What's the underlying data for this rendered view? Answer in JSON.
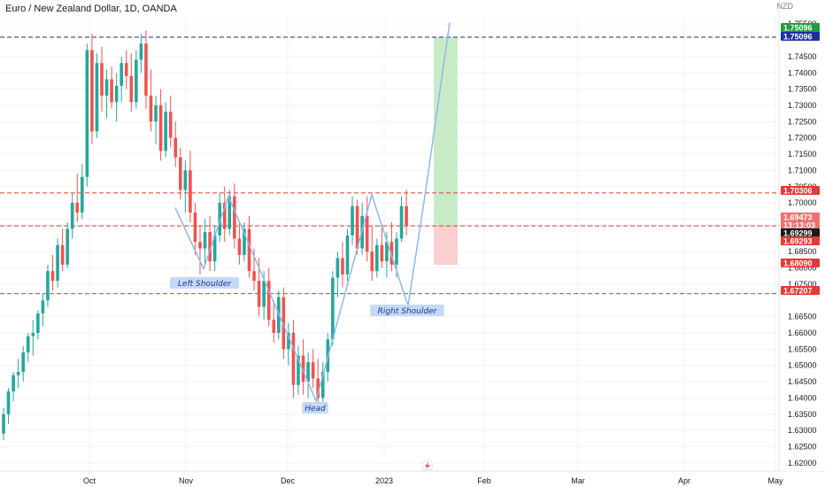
{
  "header": {
    "title": "Euro / New Zealand Dollar, 1D, OANDA",
    "currency": "NZD"
  },
  "colors": {
    "up": "#26a69a",
    "down": "#ef5350",
    "pattern_line": "#90b8e8",
    "annotation_bg": "#c5d9f7",
    "target_zone": "#c8ecc7",
    "stop_zone": "#fbd0d0",
    "level_line_red": "#e53935",
    "level_line_navy": "#2a2a7a"
  },
  "price_axis": {
    "labels": [
      "1.75500",
      "1.74500",
      "1.74000",
      "1.73500",
      "1.73000",
      "1.72500",
      "1.72000",
      "1.71500",
      "1.71000",
      "1.70500",
      "1.70000",
      "1.69500",
      "1.68500",
      "1.68000",
      "1.67500",
      "1.66500",
      "1.66000",
      "1.65500",
      "1.65000",
      "1.64500",
      "1.64000",
      "1.63500",
      "1.63000",
      "1.62500",
      "1.62000"
    ]
  },
  "price_tags": [
    {
      "text": "1.75096",
      "color": "#1e9e3a"
    },
    {
      "text": "1.75096",
      "color": "#1c2fa0"
    },
    {
      "text": "1.70306",
      "color": "#e53935"
    },
    {
      "text": "1.69473",
      "color": "#ef7070"
    },
    {
      "text": "13:13:03",
      "color": "#ef7070"
    },
    {
      "text": "1.69299",
      "color": "#1a1a1a"
    },
    {
      "text": "1.69293",
      "color": "#e53935"
    },
    {
      "text": "1.68090",
      "color": "#e53935"
    },
    {
      "text": "1.67207",
      "color": "#e53935"
    }
  ],
  "time_axis": {
    "labels": [
      "Oct",
      "Nov",
      "Dec",
      "2023",
      "Feb",
      "Mar",
      "Apr",
      "May"
    ]
  },
  "annotations": {
    "left_shoulder": "Left Shoulder",
    "head": "Head",
    "right_shoulder": "Right Shoulder"
  },
  "chart_data": {
    "type": "candlestick",
    "ylim": [
      1.6175,
      1.7575
    ],
    "candles": [
      [
        1.629,
        1.637,
        1.627,
        1.635
      ],
      [
        1.635,
        1.643,
        1.632,
        1.642
      ],
      [
        1.642,
        1.648,
        1.639,
        1.647
      ],
      [
        1.647,
        1.652,
        1.643,
        1.648
      ],
      [
        1.648,
        1.656,
        1.645,
        1.654
      ],
      [
        1.654,
        1.66,
        1.651,
        1.659
      ],
      [
        1.659,
        1.664,
        1.653,
        1.66
      ],
      [
        1.66,
        1.667,
        1.658,
        1.666
      ],
      [
        1.666,
        1.672,
        1.662,
        1.67
      ],
      [
        1.67,
        1.681,
        1.668,
        1.679
      ],
      [
        1.679,
        1.684,
        1.673,
        1.676
      ],
      [
        1.676,
        1.689,
        1.674,
        1.687
      ],
      [
        1.687,
        1.692,
        1.679,
        1.681
      ],
      [
        1.681,
        1.694,
        1.68,
        1.692
      ],
      [
        1.692,
        1.703,
        1.689,
        1.7
      ],
      [
        1.7,
        1.709,
        1.694,
        1.697
      ],
      [
        1.697,
        1.712,
        1.695,
        1.708
      ],
      [
        1.708,
        1.749,
        1.705,
        1.747
      ],
      [
        1.747,
        1.752,
        1.718,
        1.722
      ],
      [
        1.722,
        1.746,
        1.72,
        1.743
      ],
      [
        1.743,
        1.748,
        1.728,
        1.733
      ],
      [
        1.733,
        1.741,
        1.726,
        1.738
      ],
      [
        1.738,
        1.742,
        1.729,
        1.731
      ],
      [
        1.731,
        1.74,
        1.725,
        1.736
      ],
      [
        1.736,
        1.745,
        1.731,
        1.743
      ],
      [
        1.743,
        1.747,
        1.735,
        1.739
      ],
      [
        1.739,
        1.746,
        1.728,
        1.731
      ],
      [
        1.731,
        1.747,
        1.729,
        1.744
      ],
      [
        1.744,
        1.752,
        1.74,
        1.749
      ],
      [
        1.749,
        1.753,
        1.729,
        1.733
      ],
      [
        1.733,
        1.741,
        1.722,
        1.725
      ],
      [
        1.725,
        1.733,
        1.718,
        1.73
      ],
      [
        1.73,
        1.735,
        1.713,
        1.716
      ],
      [
        1.716,
        1.731,
        1.714,
        1.728
      ],
      [
        1.728,
        1.733,
        1.717,
        1.72
      ],
      [
        1.72,
        1.725,
        1.711,
        1.714
      ],
      [
        1.714,
        1.717,
        1.701,
        1.704
      ],
      [
        1.704,
        1.713,
        1.697,
        1.71
      ],
      [
        1.71,
        1.716,
        1.694,
        1.697
      ],
      [
        1.697,
        1.7,
        1.684,
        1.688
      ],
      [
        1.688,
        1.693,
        1.678,
        1.686
      ],
      [
        1.686,
        1.695,
        1.681,
        1.691
      ],
      [
        1.691,
        1.696,
        1.679,
        1.682
      ],
      [
        1.682,
        1.693,
        1.679,
        1.69
      ],
      [
        1.69,
        1.703,
        1.688,
        1.7
      ],
      [
        1.7,
        1.705,
        1.688,
        1.692
      ],
      [
        1.692,
        1.704,
        1.69,
        1.702
      ],
      [
        1.702,
        1.706,
        1.686,
        1.689
      ],
      [
        1.689,
        1.694,
        1.681,
        1.684
      ],
      [
        1.684,
        1.694,
        1.682,
        1.692
      ],
      [
        1.692,
        1.696,
        1.677,
        1.679
      ],
      [
        1.679,
        1.686,
        1.673,
        1.676
      ],
      [
        1.676,
        1.683,
        1.665,
        1.668
      ],
      [
        1.668,
        1.679,
        1.664,
        1.676
      ],
      [
        1.676,
        1.68,
        1.662,
        1.664
      ],
      [
        1.664,
        1.67,
        1.657,
        1.66
      ],
      [
        1.66,
        1.673,
        1.658,
        1.671
      ],
      [
        1.671,
        1.674,
        1.652,
        1.655
      ],
      [
        1.655,
        1.663,
        1.65,
        1.66
      ],
      [
        1.66,
        1.664,
        1.64,
        1.644
      ],
      [
        1.644,
        1.656,
        1.641,
        1.653
      ],
      [
        1.653,
        1.658,
        1.641,
        1.645
      ],
      [
        1.645,
        1.654,
        1.64,
        1.651
      ],
      [
        1.651,
        1.655,
        1.643,
        1.646
      ],
      [
        1.646,
        1.652,
        1.636,
        1.64
      ],
      [
        1.64,
        1.651,
        1.638,
        1.648
      ],
      [
        1.648,
        1.66,
        1.645,
        1.658
      ],
      [
        1.658,
        1.679,
        1.656,
        1.677
      ],
      [
        1.677,
        1.685,
        1.671,
        1.683
      ],
      [
        1.683,
        1.688,
        1.674,
        1.678
      ],
      [
        1.678,
        1.692,
        1.676,
        1.69
      ],
      [
        1.69,
        1.702,
        1.687,
        1.699
      ],
      [
        1.699,
        1.701,
        1.684,
        1.686
      ],
      [
        1.686,
        1.7,
        1.684,
        1.696
      ],
      [
        1.696,
        1.702,
        1.682,
        1.685
      ],
      [
        1.685,
        1.693,
        1.676,
        1.679
      ],
      [
        1.679,
        1.689,
        1.677,
        1.687
      ],
      [
        1.687,
        1.693,
        1.68,
        1.682
      ],
      [
        1.682,
        1.691,
        1.677,
        1.688
      ],
      [
        1.688,
        1.694,
        1.679,
        1.681
      ],
      [
        1.681,
        1.691,
        1.677,
        1.689
      ],
      [
        1.689,
        1.702,
        1.688,
        1.699
      ],
      [
        1.699,
        1.704,
        1.69,
        1.693
      ]
    ],
    "levels": [
      1.75096,
      1.70306,
      1.69299,
      1.69293,
      1.67207
    ],
    "head_and_shoulders": {
      "left_shoulder": 1.6797,
      "head": 1.6391,
      "right_shoulder": 1.6683,
      "target": 1.7555
    },
    "position": {
      "entry": 1.69293,
      "target": 1.75096,
      "stop": 1.6809
    }
  }
}
